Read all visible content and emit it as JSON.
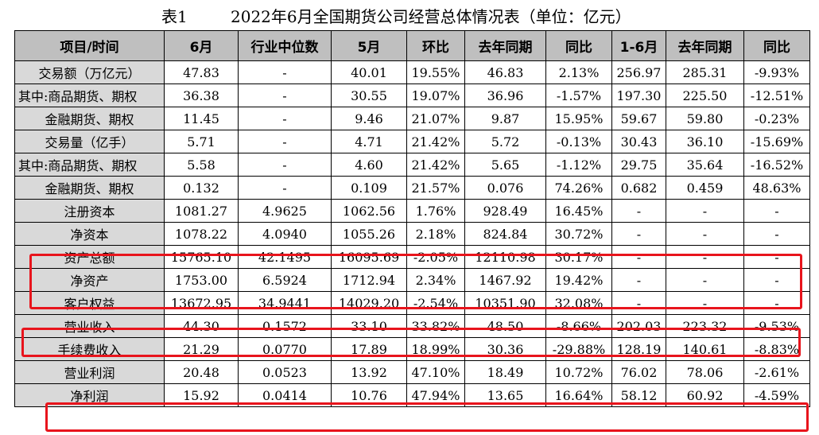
{
  "caption": {
    "label": "表1",
    "title": "2022年6月全国期货公司经营总体情况表（单位：亿元）"
  },
  "table": {
    "headers": [
      "项目/时间",
      "6月",
      "行业中位数",
      "5月",
      "环比",
      "去年同期",
      "同比",
      "1-6月",
      "去年同期",
      "同比"
    ],
    "rows": [
      [
        "交易额（万亿元）",
        "47.83",
        "-",
        "40.01",
        "19.55%",
        "46.83",
        "2.13%",
        "256.97",
        "285.31",
        "-9.93%"
      ],
      [
        "其中:商品期货、期权",
        "36.38",
        "-",
        "30.55",
        "19.07%",
        "36.96",
        "-1.57%",
        "197.30",
        "225.50",
        "-12.51%"
      ],
      [
        "金融期货、期权",
        "11.45",
        "-",
        "9.46",
        "21.07%",
        "9.87",
        "15.95%",
        "59.67",
        "59.80",
        "-0.23%"
      ],
      [
        "交易量（亿手）",
        "5.71",
        "-",
        "4.71",
        "21.42%",
        "5.72",
        "-0.13%",
        "30.43",
        "36.10",
        "-15.69%"
      ],
      [
        "其中:商品期货、期权",
        "5.58",
        "-",
        "4.60",
        "21.42%",
        "5.65",
        "-1.12%",
        "29.75",
        "35.64",
        "-16.52%"
      ],
      [
        "金融期货、期权",
        "0.132",
        "-",
        "0.109",
        "21.57%",
        "0.076",
        "74.26%",
        "0.682",
        "0.459",
        "48.63%"
      ],
      [
        "注册资本",
        "1081.27",
        "4.9625",
        "1062.56",
        "1.76%",
        "928.49",
        "16.45%",
        "-",
        "-",
        "-"
      ],
      [
        "净资本",
        "1078.22",
        "4.0940",
        "1055.26",
        "2.18%",
        "824.84",
        "30.72%",
        "-",
        "-",
        "-"
      ],
      [
        "资产总额",
        "15765.10",
        "42.1495",
        "16095.69",
        "-2.05%",
        "12110.98",
        "30.17%",
        "-",
        "-",
        "-"
      ],
      [
        "净资产",
        "1753.00",
        "6.5924",
        "1712.94",
        "2.34%",
        "1467.92",
        "19.42%",
        "-",
        "-",
        "-"
      ],
      [
        "客户权益",
        "13672.95",
        "34.9441",
        "14029.20",
        "-2.54%",
        "10351.90",
        "32.08%",
        "-",
        "-",
        "-"
      ],
      [
        "营业收入",
        "44.30",
        "0.1572",
        "33.10",
        "33.82%",
        "48.50",
        "-8.66%",
        "202.03",
        "223.32",
        "-9.53%"
      ],
      [
        "手续费收入",
        "21.29",
        "0.0770",
        "17.89",
        "18.99%",
        "30.36",
        "-29.88%",
        "128.19",
        "140.61",
        "-8.83%"
      ],
      [
        "营业利润",
        "20.48",
        "0.0523",
        "13.92",
        "47.10%",
        "18.49",
        "10.72%",
        "76.02",
        "78.06",
        "-2.61%"
      ],
      [
        "净利润",
        "15.92",
        "0.0414",
        "10.76",
        "47.94%",
        "13.65",
        "16.64%",
        "58.12",
        "60.92",
        "-4.59%"
      ]
    ]
  },
  "highlight_color": "#e8141c"
}
